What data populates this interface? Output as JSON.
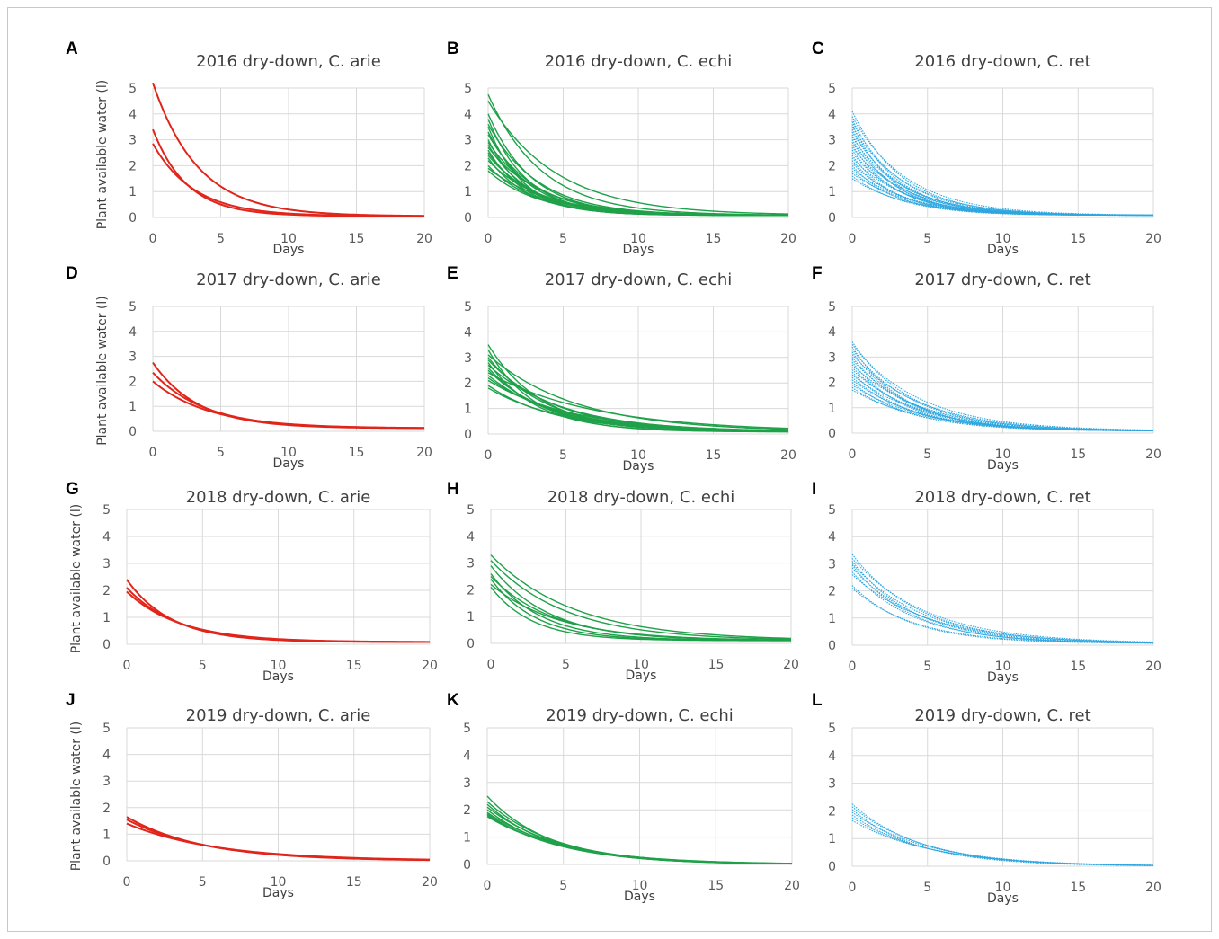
{
  "chart_data": [
    {
      "letter": "A",
      "title": "2016 dry-down, C. arie",
      "xlabel": "Days",
      "ylabel": "Plant available water (l)",
      "type": "line",
      "xlim": [
        0,
        20
      ],
      "ylim": [
        0,
        5
      ],
      "xticks": [
        "0",
        "5",
        "10",
        "15",
        "20"
      ],
      "yticks": [
        "0",
        "1",
        "2",
        "3",
        "4",
        "5"
      ],
      "color": "#e1251b",
      "style": "solid",
      "asymptote": 0.05,
      "series": [
        {
          "y0": 5.2,
          "k": 0.3
        },
        {
          "y0": 3.4,
          "k": 0.4
        },
        {
          "y0": 2.85,
          "k": 0.33
        }
      ]
    },
    {
      "letter": "B",
      "title": "2016 dry-down, C. echi",
      "xlabel": "Days",
      "ylabel": "",
      "type": "line",
      "xlim": [
        0,
        20
      ],
      "ylim": [
        0,
        5
      ],
      "xticks": [
        "0",
        "5",
        "10",
        "15",
        "20"
      ],
      "yticks": [
        "0",
        "1",
        "2",
        "3",
        "4",
        "5"
      ],
      "color": "#1fa149",
      "style": "solid",
      "asymptote": 0.08,
      "series": [
        {
          "y0": 4.75,
          "k": 0.28
        },
        {
          "y0": 4.5,
          "k": 0.22
        },
        {
          "y0": 4.0,
          "k": 0.34
        },
        {
          "y0": 3.8,
          "k": 0.38
        },
        {
          "y0": 3.6,
          "k": 0.3
        },
        {
          "y0": 3.5,
          "k": 0.42
        },
        {
          "y0": 3.3,
          "k": 0.36
        },
        {
          "y0": 3.2,
          "k": 0.32
        },
        {
          "y0": 3.0,
          "k": 0.4
        },
        {
          "y0": 2.9,
          "k": 0.3
        },
        {
          "y0": 2.8,
          "k": 0.35
        },
        {
          "y0": 2.7,
          "k": 0.28
        },
        {
          "y0": 2.6,
          "k": 0.38
        },
        {
          "y0": 2.5,
          "k": 0.33
        },
        {
          "y0": 2.4,
          "k": 0.3
        },
        {
          "y0": 2.3,
          "k": 0.36
        },
        {
          "y0": 2.2,
          "k": 0.28
        },
        {
          "y0": 2.0,
          "k": 0.32
        },
        {
          "y0": 1.9,
          "k": 0.25
        },
        {
          "y0": 1.8,
          "k": 0.3
        }
      ]
    },
    {
      "letter": "C",
      "title": "2016 dry-down, C. ret",
      "xlabel": "Days",
      "ylabel": "",
      "type": "line",
      "xlim": [
        0,
        20
      ],
      "ylim": [
        0,
        5
      ],
      "xticks": [
        "0",
        "5",
        "10",
        "15",
        "20"
      ],
      "yticks": [
        "0",
        "1",
        "2",
        "3",
        "4",
        "5"
      ],
      "color": "#2ea7e0",
      "style": "dotted",
      "asymptote": 0.08,
      "series": [
        {
          "y0": 4.1,
          "k": 0.3
        },
        {
          "y0": 3.9,
          "k": 0.27
        },
        {
          "y0": 3.8,
          "k": 0.33
        },
        {
          "y0": 3.7,
          "k": 0.3
        },
        {
          "y0": 3.6,
          "k": 0.36
        },
        {
          "y0": 3.5,
          "k": 0.28
        },
        {
          "y0": 3.4,
          "k": 0.32
        },
        {
          "y0": 3.3,
          "k": 0.3
        },
        {
          "y0": 3.2,
          "k": 0.35
        },
        {
          "y0": 3.1,
          "k": 0.29
        },
        {
          "y0": 3.0,
          "k": 0.33
        },
        {
          "y0": 2.9,
          "k": 0.3
        },
        {
          "y0": 2.8,
          "k": 0.34
        },
        {
          "y0": 2.7,
          "k": 0.28
        },
        {
          "y0": 2.6,
          "k": 0.32
        },
        {
          "y0": 2.5,
          "k": 0.3
        },
        {
          "y0": 2.4,
          "k": 0.35
        },
        {
          "y0": 2.3,
          "k": 0.28
        },
        {
          "y0": 2.2,
          "k": 0.32
        },
        {
          "y0": 2.1,
          "k": 0.3
        },
        {
          "y0": 2.0,
          "k": 0.34
        },
        {
          "y0": 1.9,
          "k": 0.28
        },
        {
          "y0": 1.8,
          "k": 0.3
        },
        {
          "y0": 1.7,
          "k": 0.26
        },
        {
          "y0": 1.6,
          "k": 0.3
        },
        {
          "y0": 1.5,
          "k": 0.27
        }
      ]
    },
    {
      "letter": "D",
      "title": "2017 dry-down, C. arie",
      "xlabel": "Days",
      "ylabel": "Plant available water (l)",
      "type": "line",
      "xlim": [
        0,
        20
      ],
      "ylim": [
        0,
        5
      ],
      "xticks": [
        "0",
        "5",
        "10",
        "15",
        "20"
      ],
      "yticks": [
        "0",
        "1",
        "2",
        "3",
        "4",
        "5"
      ],
      "color": "#e1251b",
      "style": "solid",
      "asymptote": 0.12,
      "series": [
        {
          "y0": 2.75,
          "k": 0.3
        },
        {
          "y0": 2.35,
          "k": 0.26
        },
        {
          "y0": 2.0,
          "k": 0.24
        }
      ]
    },
    {
      "letter": "E",
      "title": "2017 dry-down, C. echi",
      "xlabel": "Days",
      "ylabel": "",
      "type": "line",
      "xlim": [
        0,
        20
      ],
      "ylim": [
        0,
        5
      ],
      "xticks": [
        "0",
        "5",
        "10",
        "15",
        "20"
      ],
      "yticks": [
        "0",
        "1",
        "2",
        "3",
        "4",
        "5"
      ],
      "color": "#1fa149",
      "style": "solid",
      "asymptote": 0.08,
      "series": [
        {
          "y0": 3.5,
          "k": 0.28
        },
        {
          "y0": 3.3,
          "k": 0.32
        },
        {
          "y0": 3.1,
          "k": 0.17
        },
        {
          "y0": 3.0,
          "k": 0.25
        },
        {
          "y0": 2.9,
          "k": 0.22
        },
        {
          "y0": 2.8,
          "k": 0.3
        },
        {
          "y0": 2.7,
          "k": 0.2
        },
        {
          "y0": 2.6,
          "k": 0.26
        },
        {
          "y0": 2.5,
          "k": 0.24
        },
        {
          "y0": 2.4,
          "k": 0.14
        },
        {
          "y0": 2.3,
          "k": 0.22
        },
        {
          "y0": 2.2,
          "k": 0.2
        },
        {
          "y0": 2.1,
          "k": 0.18
        },
        {
          "y0": 1.9,
          "k": 0.22
        },
        {
          "y0": 1.8,
          "k": 0.2
        }
      ]
    },
    {
      "letter": "F",
      "title": "2017 dry-down, C. ret",
      "xlabel": "Days",
      "ylabel": "",
      "type": "line",
      "xlim": [
        0,
        20
      ],
      "ylim": [
        0,
        5
      ],
      "xticks": [
        "0",
        "5",
        "10",
        "15",
        "20"
      ],
      "yticks": [
        "0",
        "1",
        "2",
        "3",
        "4",
        "5"
      ],
      "color": "#2ea7e0",
      "style": "dotted",
      "asymptote": 0.08,
      "series": [
        {
          "y0": 3.6,
          "k": 0.25
        },
        {
          "y0": 3.5,
          "k": 0.22
        },
        {
          "y0": 3.4,
          "k": 0.28
        },
        {
          "y0": 3.3,
          "k": 0.24
        },
        {
          "y0": 3.2,
          "k": 0.27
        },
        {
          "y0": 3.1,
          "k": 0.22
        },
        {
          "y0": 3.0,
          "k": 0.26
        },
        {
          "y0": 2.9,
          "k": 0.24
        },
        {
          "y0": 2.8,
          "k": 0.28
        },
        {
          "y0": 2.7,
          "k": 0.22
        },
        {
          "y0": 2.6,
          "k": 0.25
        },
        {
          "y0": 2.5,
          "k": 0.23
        },
        {
          "y0": 2.4,
          "k": 0.27
        },
        {
          "y0": 2.3,
          "k": 0.22
        },
        {
          "y0": 2.2,
          "k": 0.25
        },
        {
          "y0": 2.1,
          "k": 0.23
        },
        {
          "y0": 2.0,
          "k": 0.26
        },
        {
          "y0": 1.9,
          "k": 0.22
        },
        {
          "y0": 1.8,
          "k": 0.24
        },
        {
          "y0": 1.7,
          "k": 0.21
        }
      ]
    },
    {
      "letter": "G",
      "title": "2018 dry-down, C. arie",
      "xlabel": "Days",
      "ylabel": "Plant available water (l)",
      "type": "line",
      "xlim": [
        0,
        20
      ],
      "ylim": [
        0,
        5
      ],
      "xticks": [
        "0",
        "5",
        "10",
        "15",
        "20"
      ],
      "yticks": [
        "0",
        "1",
        "2",
        "3",
        "4",
        "5"
      ],
      "color": "#e1251b",
      "style": "solid",
      "asymptote": 0.08,
      "series": [
        {
          "y0": 2.4,
          "k": 0.34
        },
        {
          "y0": 2.1,
          "k": 0.3
        },
        {
          "y0": 1.95,
          "k": 0.28
        }
      ]
    },
    {
      "letter": "H",
      "title": "2018 dry-down, C. echi",
      "xlabel": "Days",
      "ylabel": "",
      "type": "line",
      "xlim": [
        0,
        20
      ],
      "ylim": [
        0,
        5
      ],
      "xticks": [
        "0",
        "5",
        "10",
        "15",
        "20"
      ],
      "yticks": [
        "0",
        "1",
        "2",
        "3",
        "4",
        "5"
      ],
      "color": "#1fa149",
      "style": "solid",
      "asymptote": 0.1,
      "series": [
        {
          "y0": 3.3,
          "k": 0.18
        },
        {
          "y0": 3.1,
          "k": 0.2
        },
        {
          "y0": 2.9,
          "k": 0.26
        },
        {
          "y0": 2.6,
          "k": 0.3
        },
        {
          "y0": 2.5,
          "k": 0.24
        },
        {
          "y0": 2.4,
          "k": 0.33
        },
        {
          "y0": 2.2,
          "k": 0.22
        },
        {
          "y0": 2.1,
          "k": 0.36
        }
      ]
    },
    {
      "letter": "I",
      "title": "2018 dry-down, C. ret",
      "xlabel": "Days",
      "ylabel": "",
      "type": "line",
      "xlim": [
        0,
        20
      ],
      "ylim": [
        0,
        5
      ],
      "xticks": [
        "0",
        "5",
        "10",
        "15",
        "20"
      ],
      "yticks": [
        "0",
        "1",
        "2",
        "3",
        "4",
        "5"
      ],
      "color": "#2ea7e0",
      "style": "dotted",
      "asymptote": 0.06,
      "series": [
        {
          "y0": 3.35,
          "k": 0.22
        },
        {
          "y0": 3.2,
          "k": 0.2
        },
        {
          "y0": 3.1,
          "k": 0.24
        },
        {
          "y0": 3.0,
          "k": 0.21
        },
        {
          "y0": 2.95,
          "k": 0.25
        },
        {
          "y0": 2.85,
          "k": 0.22
        },
        {
          "y0": 2.7,
          "k": 0.24
        },
        {
          "y0": 2.6,
          "k": 0.2
        },
        {
          "y0": 2.2,
          "k": 0.26
        },
        {
          "y0": 2.1,
          "k": 0.24
        }
      ]
    },
    {
      "letter": "J",
      "title": "2019 dry-down, C. arie",
      "xlabel": "Days",
      "ylabel": "Plant available water (l)",
      "type": "line",
      "xlim": [
        0,
        20
      ],
      "ylim": [
        0,
        5
      ],
      "xticks": [
        "0",
        "5",
        "10",
        "15",
        "20"
      ],
      "yticks": [
        "0",
        "1",
        "2",
        "3",
        "4",
        "5"
      ],
      "color": "#e1251b",
      "style": "solid",
      "asymptote": 0.0,
      "series": [
        {
          "y0": 1.65,
          "k": 0.2
        },
        {
          "y0": 1.55,
          "k": 0.19
        },
        {
          "y0": 1.4,
          "k": 0.17
        }
      ]
    },
    {
      "letter": "K",
      "title": "2019 dry-down, C. echi",
      "xlabel": "Days",
      "ylabel": "",
      "type": "line",
      "xlim": [
        0,
        20
      ],
      "ylim": [
        0,
        5
      ],
      "xticks": [
        "0",
        "5",
        "10",
        "15",
        "20"
      ],
      "yticks": [
        "0",
        "1",
        "2",
        "3",
        "4",
        "5"
      ],
      "color": "#1fa149",
      "style": "solid",
      "asymptote": 0.0,
      "series": [
        {
          "y0": 2.5,
          "k": 0.24
        },
        {
          "y0": 2.3,
          "k": 0.22
        },
        {
          "y0": 2.2,
          "k": 0.23
        },
        {
          "y0": 2.1,
          "k": 0.21
        },
        {
          "y0": 2.0,
          "k": 0.22
        },
        {
          "y0": 1.9,
          "k": 0.2
        },
        {
          "y0": 1.85,
          "k": 0.21
        },
        {
          "y0": 1.8,
          "k": 0.2
        },
        {
          "y0": 1.75,
          "k": 0.19
        }
      ]
    },
    {
      "letter": "L",
      "title": "2019 dry-down, C. ret",
      "xlabel": "Days",
      "ylabel": "",
      "type": "line",
      "xlim": [
        0,
        20
      ],
      "ylim": [
        0,
        5
      ],
      "xticks": [
        "0",
        "5",
        "10",
        "15",
        "20"
      ],
      "yticks": [
        "0",
        "1",
        "2",
        "3",
        "4",
        "5"
      ],
      "color": "#2ea7e0",
      "style": "dotted",
      "asymptote": 0.0,
      "series": [
        {
          "y0": 2.25,
          "k": 0.22
        },
        {
          "y0": 2.15,
          "k": 0.21
        },
        {
          "y0": 2.05,
          "k": 0.23
        },
        {
          "y0": 1.95,
          "k": 0.2
        },
        {
          "y0": 1.85,
          "k": 0.21
        },
        {
          "y0": 1.75,
          "k": 0.2
        },
        {
          "y0": 1.65,
          "k": 0.19
        }
      ]
    }
  ]
}
